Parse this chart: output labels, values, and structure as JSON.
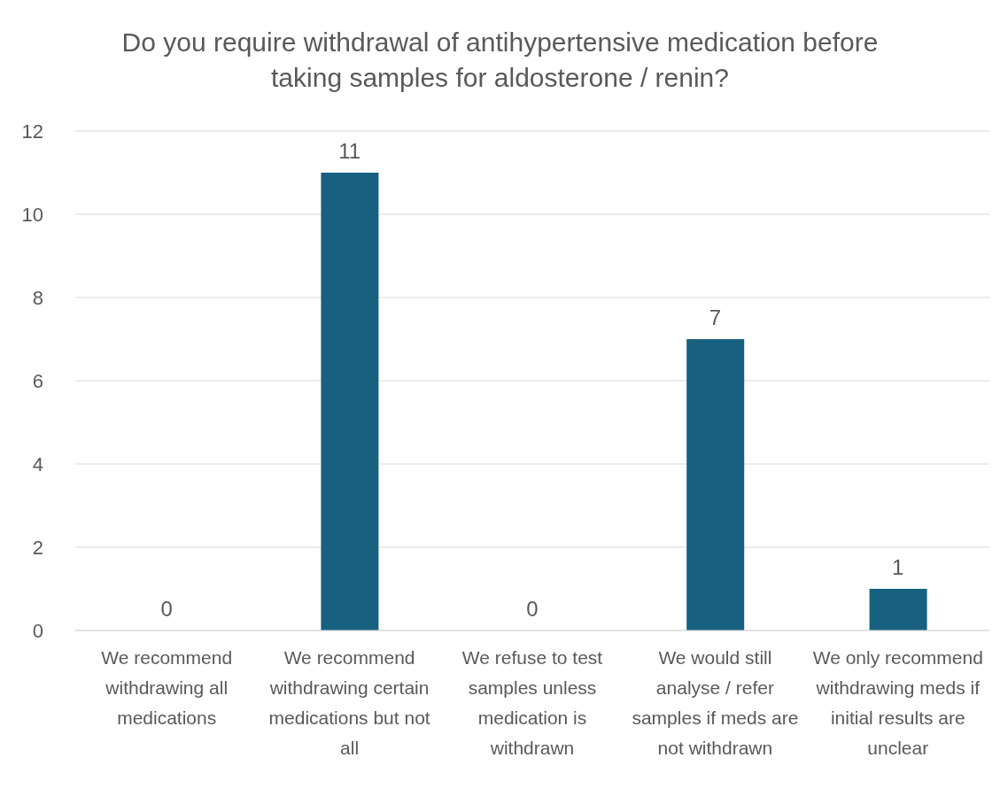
{
  "chart_data": {
    "type": "bar",
    "title": "Do you require withdrawal of antihypertensive medication before taking samples for aldosterone / renin?",
    "categories": [
      "We recommend withdrawing all medications",
      "We recommend withdrawing certain medications but not all",
      "We refuse to test samples unless medication is withdrawn",
      "We would still analyse / refer samples if meds are not withdrawn",
      "We only recommend withdrawing meds if initial results are unclear"
    ],
    "values": [
      0,
      11,
      0,
      7,
      1
    ],
    "color": "#17607f",
    "ylim": [
      0,
      12
    ],
    "yticks": [
      0,
      2,
      4,
      6,
      8,
      10,
      12
    ],
    "grid": "y",
    "data_labels": true
  }
}
